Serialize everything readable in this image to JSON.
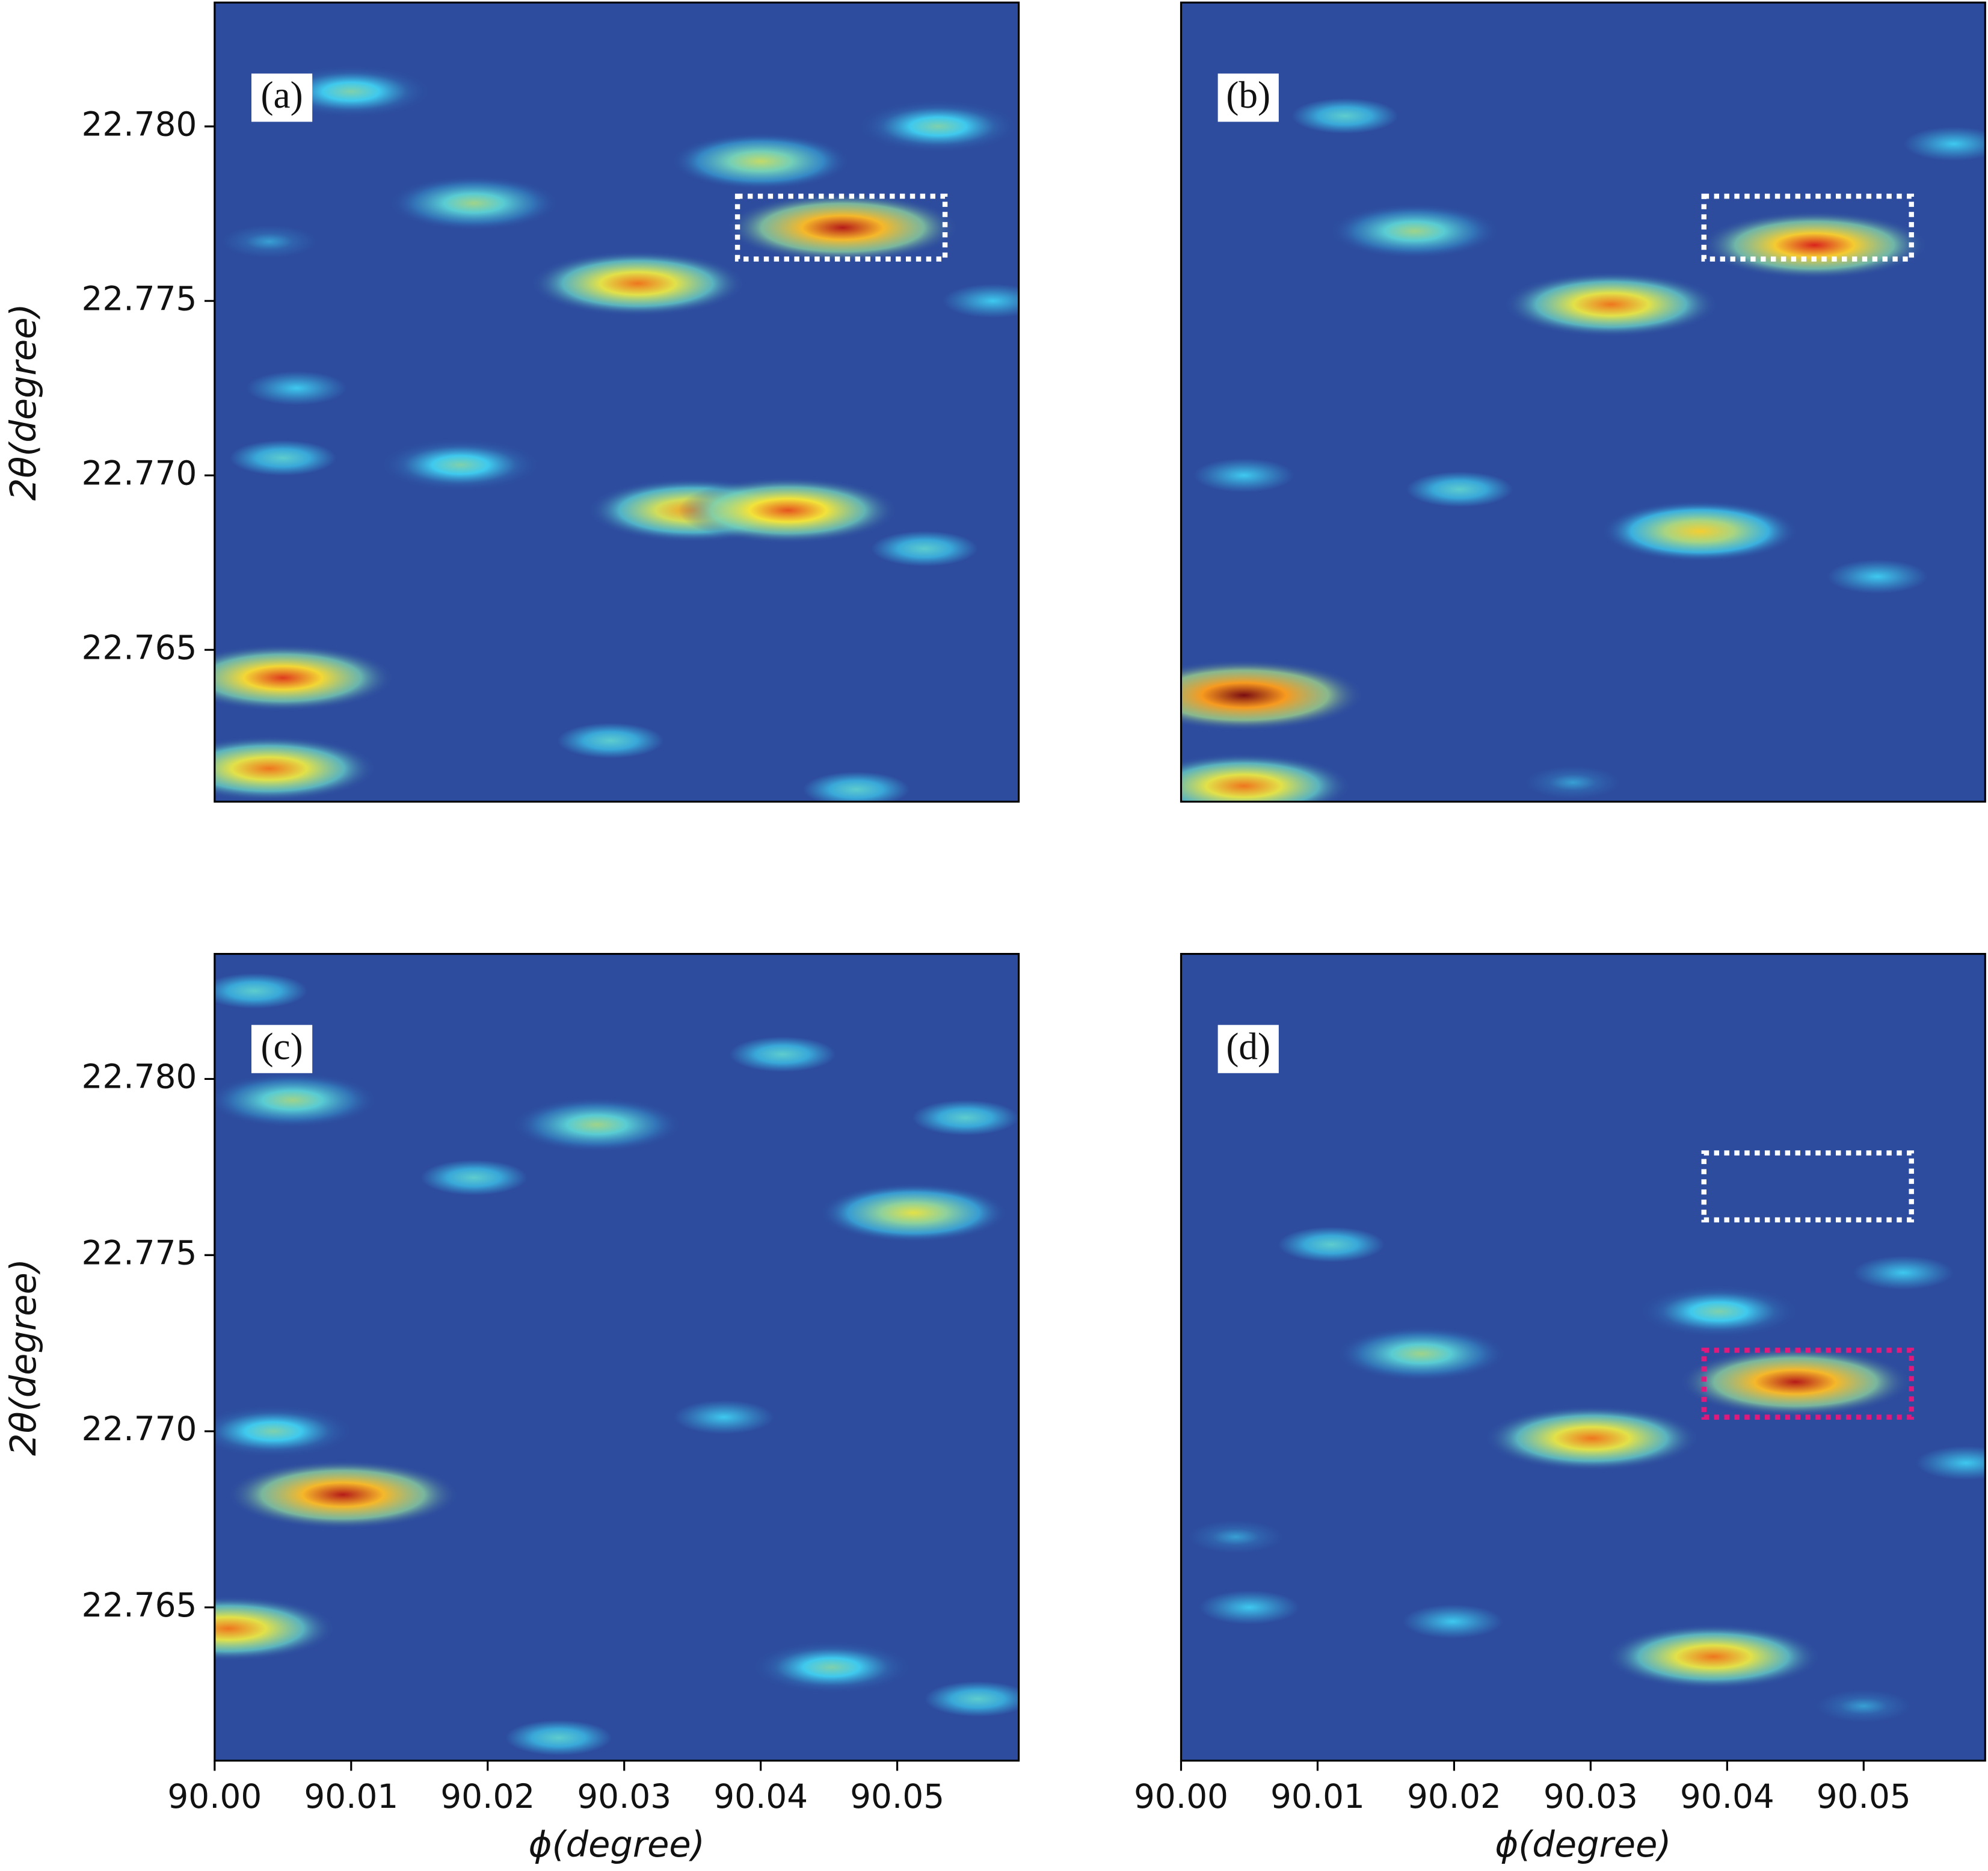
{
  "chart_data": [
    {
      "type": "heatmap",
      "label": "(a)",
      "ylabel": "2θ(degree)",
      "xlim": [
        90.0,
        90.0589
      ],
      "ylim": [
        22.76065,
        22.78355
      ],
      "yticks": [
        {
          "value": 22.78,
          "label": "22.780"
        },
        22.775,
        {
          "value": 22.77,
          "label": "22.770"
        },
        22.765
      ],
      "peaks": [
        {
          "x": 90.046,
          "y": 22.7771,
          "value": 0.95
        },
        {
          "x": 90.031,
          "y": 22.7755,
          "value": 0.85
        },
        {
          "x": 90.035,
          "y": 22.769,
          "value": 0.82
        },
        {
          "x": 90.042,
          "y": 22.769,
          "value": 0.88
        },
        {
          "x": 90.005,
          "y": 22.7642,
          "value": 0.9
        },
        {
          "x": 90.004,
          "y": 22.7616,
          "value": 0.85
        },
        {
          "x": 90.019,
          "y": 22.7778,
          "value": 0.6
        },
        {
          "x": 90.04,
          "y": 22.779,
          "value": 0.65
        },
        {
          "x": 90.01,
          "y": 22.781,
          "value": 0.55
        },
        {
          "x": 90.053,
          "y": 22.78,
          "value": 0.55
        },
        {
          "x": 90.018,
          "y": 22.7703,
          "value": 0.55
        },
        {
          "x": 90.005,
          "y": 22.7705,
          "value": 0.5
        },
        {
          "x": 90.006,
          "y": 22.7725,
          "value": 0.45
        },
        {
          "x": 90.052,
          "y": 22.7679,
          "value": 0.5
        },
        {
          "x": 90.029,
          "y": 22.7624,
          "value": 0.5
        },
        {
          "x": 90.047,
          "y": 22.761,
          "value": 0.5
        },
        {
          "x": 90.057,
          "y": 22.775,
          "value": 0.45
        },
        {
          "x": 90.004,
          "y": 22.7767,
          "value": 0.4
        }
      ],
      "boxes": [
        {
          "xlim": [
            90.0383,
            90.0535
          ],
          "ylim": [
            22.7762,
            22.778
          ],
          "color": "#ffffff"
        }
      ]
    },
    {
      "type": "heatmap",
      "label": "(b)",
      "xlim": [
        90.0,
        90.0589
      ],
      "ylim": [
        22.76065,
        22.78355
      ],
      "peaks": [
        {
          "x": 90.0464,
          "y": 22.7766,
          "value": 0.92
        },
        {
          "x": 90.0315,
          "y": 22.7749,
          "value": 0.85
        },
        {
          "x": 90.038,
          "y": 22.7684,
          "value": 0.75
        },
        {
          "x": 90.0046,
          "y": 22.7637,
          "value": 1.0
        },
        {
          "x": 90.0046,
          "y": 22.7611,
          "value": 0.85
        },
        {
          "x": 90.0171,
          "y": 22.777,
          "value": 0.6
        },
        {
          "x": 90.012,
          "y": 22.7803,
          "value": 0.5
        },
        {
          "x": 90.0204,
          "y": 22.7696,
          "value": 0.5
        },
        {
          "x": 90.0046,
          "y": 22.77,
          "value": 0.45
        },
        {
          "x": 90.051,
          "y": 22.7671,
          "value": 0.45
        },
        {
          "x": 90.0566,
          "y": 22.7795,
          "value": 0.45
        },
        {
          "x": 90.0287,
          "y": 22.7612,
          "value": 0.4
        }
      ],
      "boxes": [
        {
          "xlim": [
            90.0383,
            90.0535
          ],
          "ylim": [
            22.7762,
            22.778
          ],
          "color": "#ffffff"
        }
      ]
    },
    {
      "type": "heatmap",
      "label": "(c)",
      "xlabel": "ϕ(degree)",
      "ylabel": "2θ(degree)",
      "xlim": [
        90.0,
        90.0589
      ],
      "ylim": [
        22.76065,
        22.78355
      ],
      "xticks": [
        {
          "value": 90.0,
          "label": "90.00"
        },
        {
          "value": 90.01,
          "label": "90.01"
        },
        {
          "value": 90.02,
          "label": "90.02"
        },
        {
          "value": 90.03,
          "label": "90.03"
        },
        {
          "value": 90.04,
          "label": "90.04"
        },
        {
          "value": 90.05,
          "label": "90.05"
        }
      ],
      "yticks": [
        {
          "value": 22.78,
          "label": "22.780"
        },
        22.775,
        {
          "value": 22.77,
          "label": "22.770"
        },
        22.765
      ],
      "peaks": [
        {
          "x": 90.0094,
          "y": 22.7682,
          "value": 0.95
        },
        {
          "x": 90.001,
          "y": 22.7644,
          "value": 0.85
        },
        {
          "x": 90.028,
          "y": 22.7787,
          "value": 0.6
        },
        {
          "x": 90.0512,
          "y": 22.7762,
          "value": 0.7
        },
        {
          "x": 90.0057,
          "y": 22.7794,
          "value": 0.6
        },
        {
          "x": 90.019,
          "y": 22.7772,
          "value": 0.5
        },
        {
          "x": 90.0416,
          "y": 22.7807,
          "value": 0.5
        },
        {
          "x": 90.055,
          "y": 22.7789,
          "value": 0.5
        },
        {
          "x": 90.0043,
          "y": 22.77,
          "value": 0.55
        },
        {
          "x": 90.0373,
          "y": 22.7704,
          "value": 0.45
        },
        {
          "x": 90.0452,
          "y": 22.7633,
          "value": 0.55
        },
        {
          "x": 90.0559,
          "y": 22.7624,
          "value": 0.5
        },
        {
          "x": 90.0252,
          "y": 22.7613,
          "value": 0.5
        },
        {
          "x": 90.0029,
          "y": 22.7825,
          "value": 0.5
        }
      ],
      "boxes": []
    },
    {
      "type": "heatmap",
      "label": "(d)",
      "xlabel": "ϕ(degree)",
      "xlim": [
        90.0,
        90.0589
      ],
      "ylim": [
        22.76065,
        22.78355
      ],
      "xticks": [
        {
          "value": 90.0,
          "label": "90.00"
        },
        {
          "value": 90.01,
          "label": "90.01"
        },
        {
          "value": 90.02,
          "label": "90.02"
        },
        {
          "value": 90.03,
          "label": "90.03"
        },
        {
          "value": 90.04,
          "label": "90.04"
        },
        {
          "value": 90.05,
          "label": "90.05"
        }
      ],
      "peaks": [
        {
          "x": 90.045,
          "y": 22.7714,
          "value": 0.95
        },
        {
          "x": 90.0301,
          "y": 22.7698,
          "value": 0.85
        },
        {
          "x": 90.039,
          "y": 22.7636,
          "value": 0.85
        },
        {
          "x": 90.0176,
          "y": 22.7722,
          "value": 0.6
        },
        {
          "x": 90.0394,
          "y": 22.7734,
          "value": 0.55
        },
        {
          "x": 90.0529,
          "y": 22.7745,
          "value": 0.45
        },
        {
          "x": 90.0199,
          "y": 22.7646,
          "value": 0.45
        },
        {
          "x": 90.005,
          "y": 22.765,
          "value": 0.45
        },
        {
          "x": 90.011,
          "y": 22.7753,
          "value": 0.5
        },
        {
          "x": 90.05,
          "y": 22.7622,
          "value": 0.4
        },
        {
          "x": 90.0575,
          "y": 22.7691,
          "value": 0.45
        },
        {
          "x": 90.004,
          "y": 22.767,
          "value": 0.4
        }
      ],
      "boxes": [
        {
          "xlim": [
            90.0383,
            90.0535
          ],
          "ylim": [
            22.776,
            22.7779
          ],
          "color": "#ffffff"
        },
        {
          "xlim": [
            90.0383,
            90.0535
          ],
          "ylim": [
            22.7704,
            22.7723
          ],
          "color": "#e0197d"
        }
      ]
    }
  ]
}
